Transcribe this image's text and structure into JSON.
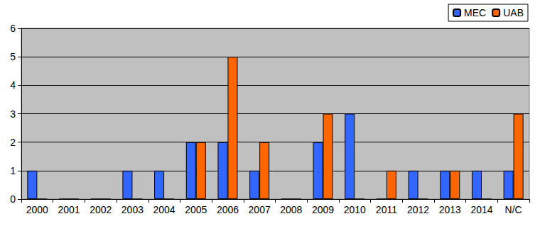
{
  "chart_data": {
    "type": "bar",
    "categories": [
      "2000",
      "2001",
      "2002",
      "2003",
      "2004",
      "2005",
      "2006",
      "2007",
      "2008",
      "2009",
      "2010",
      "2011",
      "2012",
      "2013",
      "2014",
      "N/C"
    ],
    "series": [
      {
        "name": "MEC",
        "color": "#3366ff",
        "values": [
          1,
          0,
          0,
          1,
          1,
          2,
          2,
          1,
          0,
          2,
          3,
          0,
          1,
          1,
          1,
          1
        ]
      },
      {
        "name": "UAB",
        "color": "#ff6600",
        "values": [
          0,
          0,
          0,
          0,
          0,
          2,
          5,
          2,
          0,
          3,
          0,
          1,
          0,
          1,
          0,
          3
        ]
      }
    ],
    "ylim": [
      0,
      6
    ],
    "yticks": [
      0,
      1,
      2,
      3,
      4,
      5,
      6
    ],
    "grid": true,
    "legend": "top-right"
  }
}
